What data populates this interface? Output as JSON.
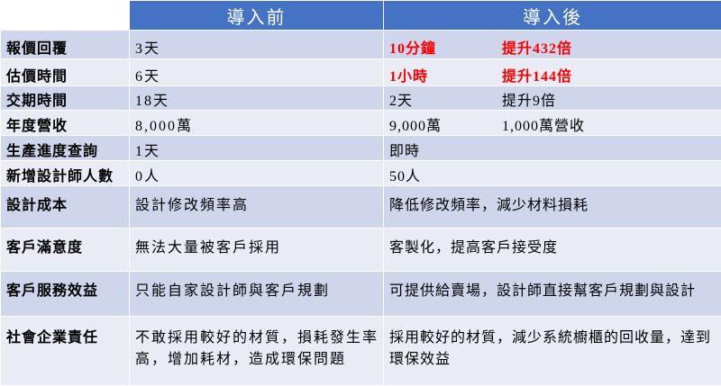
{
  "table": {
    "header": [
      "導入前",
      "導入後"
    ],
    "rows": [
      {
        "label": "報價回覆",
        "before": "3天",
        "after": "10分鐘",
        "note": "提升432倍",
        "color": "#ff0000"
      },
      {
        "label": "估價時間",
        "before": "6天",
        "after": "1小時",
        "note": "提升144倍",
        "color": "#ff0000"
      },
      {
        "label": "交期時間",
        "before": "18天",
        "after": "2天",
        "note": "提升9倍"
      },
      {
        "label": "年度營收",
        "before": "8,000萬",
        "after": "9,000萬",
        "note": "1,000萬營收"
      },
      {
        "label": "生產進度查詢",
        "before": "1天",
        "after": "即時"
      },
      {
        "label": "新增設計師人數",
        "before": "0人",
        "after": "50人"
      },
      {
        "label": "設計成本",
        "before": "設計修改頻率高",
        "after": "降低修改頻率，減少材料損耗"
      },
      {
        "label": "客戶滿意度",
        "before": "無法大量被客戶採用",
        "after": "客製化，提高客戶接受度"
      },
      {
        "label": "客戶服務效益",
        "before": "只能自家設計師與客戶規劃",
        "after": "可提供給賣場，設計師直接幫客戶規劃與設計"
      },
      {
        "label": "社會企業責任",
        "before": "不敢採用較好的材質，損耗發生率高，增加耗材，造成環保問題",
        "after": "採用較好的材質，減少系統櫥櫃的回收量，達到環保效益"
      }
    ]
  }
}
